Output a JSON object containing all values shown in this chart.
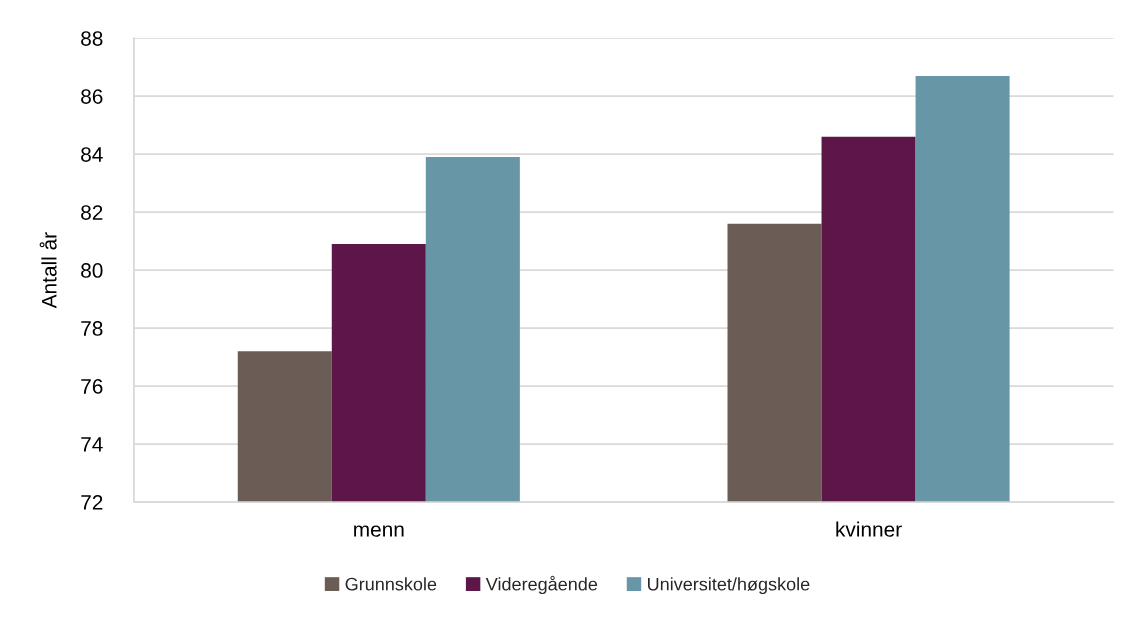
{
  "chart_data": {
    "type": "bar",
    "ylabel": "Antall år",
    "categories": [
      "menn",
      "kvinner"
    ],
    "series": [
      {
        "name": "Grunnskole",
        "color": "#6b5c55",
        "values": [
          77.2,
          81.6
        ]
      },
      {
        "name": "Videregående",
        "color": "#5c1748",
        "values": [
          80.9,
          84.6
        ]
      },
      {
        "name": "Universitet/høgskole",
        "color": "#6796a6",
        "values": [
          83.9,
          86.7
        ]
      }
    ],
    "ylim": [
      72,
      88
    ],
    "yticks": [
      72,
      74,
      76,
      78,
      80,
      82,
      84,
      86,
      88
    ],
    "grid": "y",
    "legend": "bottom"
  }
}
